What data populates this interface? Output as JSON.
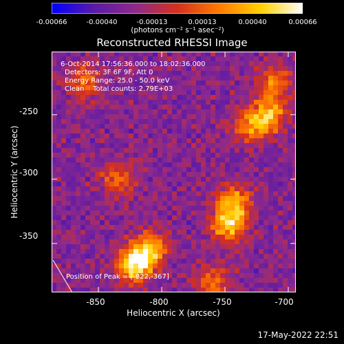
{
  "chart_data": {
    "type": "heatmap",
    "title": "Reconstructed RHESSI Image",
    "xlabel": "Heliocentric X (arcsec)",
    "ylabel": "Heliocentric Y (arcsec)",
    "xlim": [
      -887,
      -694
    ],
    "ylim": [
      -388,
      -201
    ],
    "x_ticks": [
      -850,
      -800,
      -750,
      -700
    ],
    "y_ticks": [
      -250,
      -300,
      -350
    ],
    "colorbar": {
      "ticks": [
        "-0.00066",
        "-0.00040",
        "-0.00013",
        "0.00013",
        "0.00040",
        "0.00066"
      ],
      "range": [
        -0.00066,
        0.00066
      ],
      "units": "(photons cm⁻² s⁻¹ asec⁻²)",
      "colormap": [
        "#0000ff",
        "#5a1aa8",
        "#8e2a8a",
        "#d5301e",
        "#ff7a00",
        "#ffd000",
        "#ffffff"
      ]
    },
    "annotations": {
      "time_range": "6-Oct-2014 17:56:36.000 to 18:02:36.000",
      "detectors": "Detectors: 3F 6F 9F, Att 0",
      "energy": "Energy Range: 25.0 - 50.0 keV",
      "clean": "Clean    Total counts: 2.79E+03",
      "peak": "Position of Peak = [-822,-367]"
    },
    "peak": [
      -822,
      -367
    ],
    "sources": [
      {
        "x": -822,
        "y": -367,
        "intensity": 1.0
      },
      {
        "x": -810,
        "y": -355,
        "intensity": 0.8
      },
      {
        "x": -747,
        "y": -335,
        "intensity": 0.85
      },
      {
        "x": -742,
        "y": -318,
        "intensity": 0.7
      },
      {
        "x": -715,
        "y": -250,
        "intensity": 0.75
      },
      {
        "x": -730,
        "y": -260,
        "intensity": 0.6
      },
      {
        "x": -710,
        "y": -225,
        "intensity": 0.6
      },
      {
        "x": -862,
        "y": -225,
        "intensity": 0.55
      },
      {
        "x": -835,
        "y": -300,
        "intensity": 0.5
      },
      {
        "x": -760,
        "y": -380,
        "intensity": 0.55
      }
    ]
  },
  "footer": {
    "timestamp": "17-May-2022 22:51"
  }
}
